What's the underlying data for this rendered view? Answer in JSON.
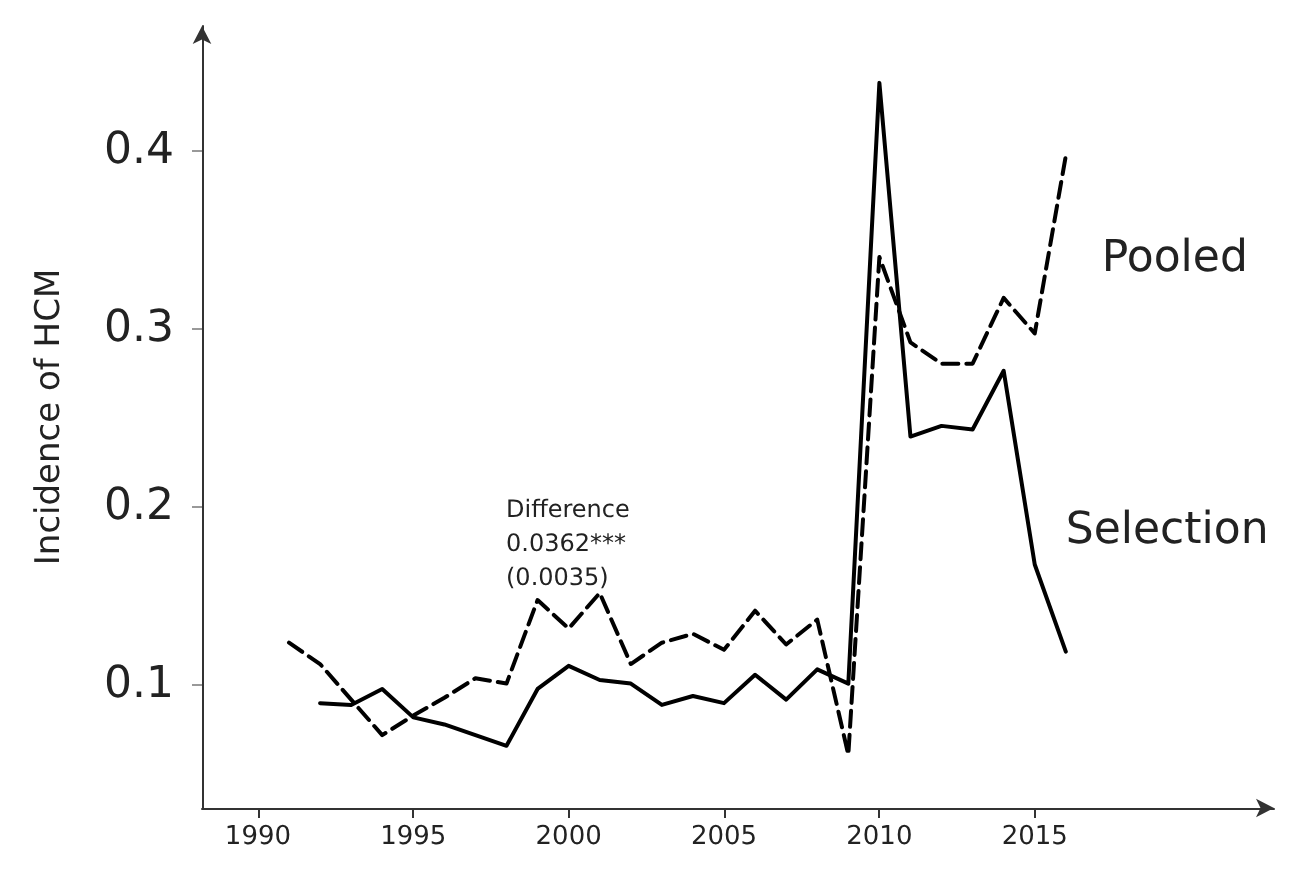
{
  "chart_data": {
    "type": "line",
    "ylabel": "Incidence of HCM",
    "xlim": [
      1988.2,
      2022.7
    ],
    "ylim": [
      0.03,
      0.47
    ],
    "xticks": [
      1990,
      1995,
      2000,
      2005,
      2010,
      2015
    ],
    "yticks": [
      0.1,
      0.2,
      0.3,
      0.4
    ],
    "grid": false,
    "legend": false,
    "marker": "none",
    "x": [
      1991,
      1992,
      1993,
      1994,
      1995,
      1996,
      1997,
      1998,
      1999,
      2000,
      2001,
      2002,
      2003,
      2004,
      2005,
      2006,
      2007,
      2008,
      2009,
      2010,
      2011,
      2012,
      2013,
      2014,
      2015,
      2016
    ],
    "series": [
      {
        "name": "Pooled",
        "color": "#000000",
        "line_style": "dashed",
        "values": [
          0.123,
          0.111,
          0.091,
          0.071,
          0.082,
          0.092,
          0.103,
          0.1,
          0.147,
          0.131,
          0.151,
          0.111,
          0.123,
          0.128,
          0.119,
          0.141,
          0.122,
          0.136,
          0.06,
          0.34,
          0.292,
          0.28,
          0.28,
          0.317,
          0.297,
          0.397
        ]
      },
      {
        "name": "Selection",
        "color": "#000000",
        "line_style": "solid",
        "values": [
          null,
          0.089,
          0.088,
          0.097,
          0.081,
          0.077,
          0.071,
          0.065,
          0.097,
          0.11,
          0.102,
          0.1,
          0.088,
          0.093,
          0.089,
          0.105,
          0.091,
          0.108,
          0.1,
          0.438,
          0.239,
          0.245,
          0.243,
          0.276,
          0.167,
          0.118
        ]
      }
    ],
    "annotations": [
      "Difference\n0.0362***\n(0.0035)"
    ]
  }
}
